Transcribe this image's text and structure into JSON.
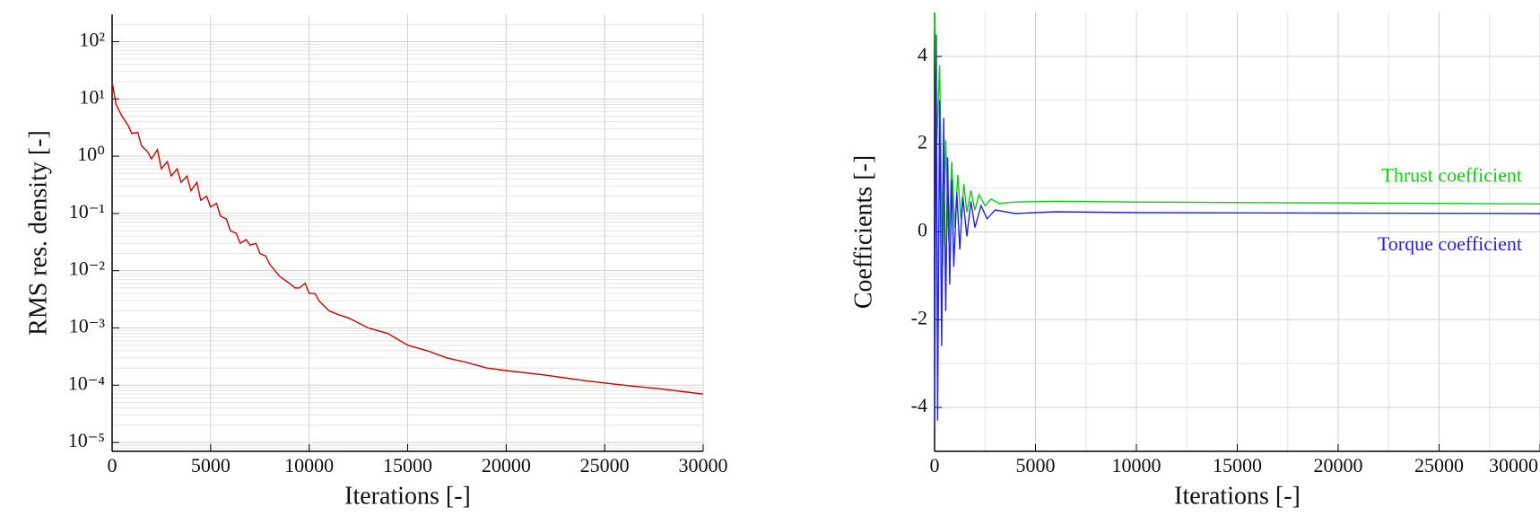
{
  "chart_data": [
    {
      "type": "line",
      "x_label": "Iterations [-]",
      "y_label": "RMS res. density [-]",
      "xlim": [
        0,
        30000
      ],
      "xticks": [
        0,
        5000,
        10000,
        15000,
        20000,
        25000,
        30000
      ],
      "ylim": [
        7e-06,
        300
      ],
      "log_y": true,
      "grid": true,
      "yticks": [
        {
          "value": 1e-05,
          "label": "10⁻⁵"
        },
        {
          "value": 0.0001,
          "label": "10⁻⁴"
        },
        {
          "value": 0.001,
          "label": "10⁻³"
        },
        {
          "value": 0.01,
          "label": "10⁻²"
        },
        {
          "value": 0.1,
          "label": "10⁻¹"
        },
        {
          "value": 1,
          "label": "10⁰"
        },
        {
          "value": 10,
          "label": "10¹"
        },
        {
          "value": 100,
          "label": "10²"
        }
      ],
      "x": [
        0,
        200,
        500,
        800,
        1000,
        1300,
        1500,
        1800,
        2000,
        2300,
        2500,
        2800,
        3000,
        3300,
        3500,
        3800,
        4000,
        4300,
        4500,
        4800,
        5000,
        5300,
        5500,
        5800,
        6000,
        6300,
        6500,
        6800,
        7000,
        7300,
        7500,
        7800,
        8000,
        8500,
        9000,
        9300,
        9500,
        9800,
        10000,
        10300,
        10500,
        11000,
        11500,
        12000,
        13000,
        14000,
        15000,
        16000,
        17000,
        18000,
        19000,
        20000,
        22000,
        24000,
        26000,
        28000,
        30000
      ],
      "series": [
        {
          "name": "RMS res. density",
          "color": "#cc0000",
          "values": [
            20,
            8,
            5,
            3.5,
            2.5,
            2.6,
            1.5,
            1.2,
            0.9,
            1.3,
            0.6,
            0.8,
            0.45,
            0.6,
            0.35,
            0.45,
            0.25,
            0.35,
            0.17,
            0.2,
            0.13,
            0.15,
            0.09,
            0.08,
            0.05,
            0.045,
            0.03,
            0.035,
            0.028,
            0.03,
            0.02,
            0.018,
            0.013,
            0.008,
            0.006,
            0.005,
            0.005,
            0.006,
            0.004,
            0.004,
            0.003,
            0.002,
            0.0017,
            0.0015,
            0.001,
            0.0008,
            0.0005,
            0.0004,
            0.0003,
            0.00025,
            0.0002,
            0.00018,
            0.00015,
            0.00012,
            0.0001,
            8.5e-05,
            7e-05
          ]
        }
      ]
    },
    {
      "type": "line",
      "x_label": "Iterations [-]",
      "y_label": "Coefficients [-]",
      "xlim": [
        0,
        30000
      ],
      "xticks": [
        0,
        5000,
        10000,
        15000,
        20000,
        25000,
        30000
      ],
      "ylim": [
        -5,
        5
      ],
      "yticks": [
        -4,
        -2,
        0,
        2,
        4
      ],
      "grid": true,
      "series": [
        {
          "name": "Thrust coefficient",
          "color": "#11cc11",
          "x": [
            0,
            100,
            250,
            400,
            550,
            700,
            850,
            1000,
            1150,
            1300,
            1450,
            1600,
            1800,
            2000,
            2200,
            2500,
            2800,
            3200,
            4000,
            6000,
            10000,
            20000,
            30000
          ],
          "values": [
            5,
            2,
            3.8,
            -0.8,
            2.1,
            -0.2,
            1.6,
            0.1,
            1.3,
            0.3,
            1.1,
            0.45,
            0.95,
            0.5,
            0.85,
            0.6,
            0.75,
            0.65,
            0.68,
            0.7,
            0.68,
            0.66,
            0.64
          ]
        },
        {
          "name": "Torque coefficient",
          "color": "#2222ee",
          "x": [
            0,
            80,
            150,
            250,
            350,
            450,
            550,
            650,
            750,
            850,
            950,
            1100,
            1250,
            1400,
            1600,
            1800,
            2000,
            2300,
            2600,
            3000,
            4000,
            6000,
            10000,
            20000,
            30000
          ],
          "values": [
            -4.5,
            4.5,
            -4.3,
            3,
            -2.6,
            2.6,
            -1.8,
            1.7,
            -1.2,
            1.2,
            -0.8,
            0.9,
            -0.4,
            0.8,
            -0.1,
            0.7,
            0.1,
            0.6,
            0.3,
            0.5,
            0.42,
            0.46,
            0.44,
            0.43,
            0.42
          ]
        }
      ]
    }
  ]
}
